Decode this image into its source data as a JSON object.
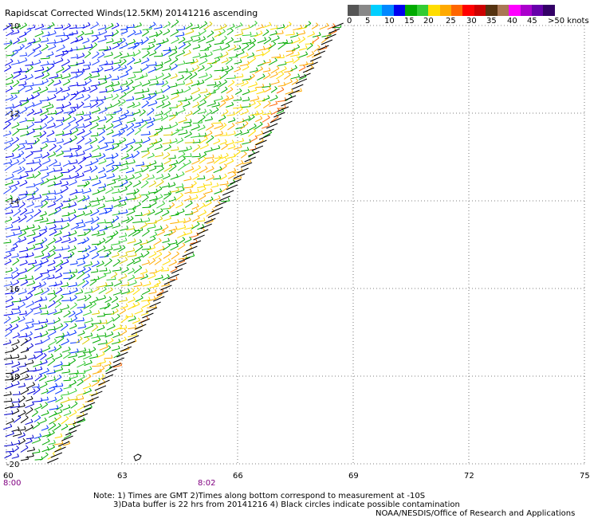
{
  "title": "Rapidscat Corrected Winds(12.5KM) 20141216 ascending",
  "scale": {
    "colors": [
      "#555555",
      "#888888",
      "#00cfff",
      "#0088ff",
      "#0000ee",
      "#00aa00",
      "#33cc33",
      "#ffdd00",
      "#ffaa00",
      "#ff6600",
      "#ff0000",
      "#cc0000",
      "#553311",
      "#aa7755",
      "#ff00ff",
      "#aa00cc",
      "#6600aa",
      "#330066"
    ],
    "labels": [
      "0",
      "5",
      "10",
      "15",
      "20",
      "25",
      "30",
      "35",
      "40",
      "45",
      ">50 knots"
    ]
  },
  "map": {
    "lat_labels": [
      "-10",
      "-12",
      "-14",
      "-16",
      "-18",
      "-20"
    ],
    "lon_labels": [
      "60",
      "63",
      "66",
      "69",
      "72",
      "75"
    ],
    "time_labels": [
      "8:00",
      "8:02"
    ],
    "grid_lat": [
      -10,
      -12,
      -14,
      -16,
      -18,
      -20
    ],
    "grid_lon": [
      60,
      63,
      66,
      69,
      72,
      75
    ],
    "lat_range": [
      -20,
      -10
    ],
    "lon_range": [
      60,
      75
    ]
  },
  "notes": {
    "line1": "Note: 1) Times are GMT 2)Times along bottom correspond to measurement at -10S",
    "line2": "3)Data buffer is 22 hrs from 20141216 4) Black circles indicate possible contamination",
    "line3": "NOAA/NESDIS/Office of Research and Applications"
  }
}
